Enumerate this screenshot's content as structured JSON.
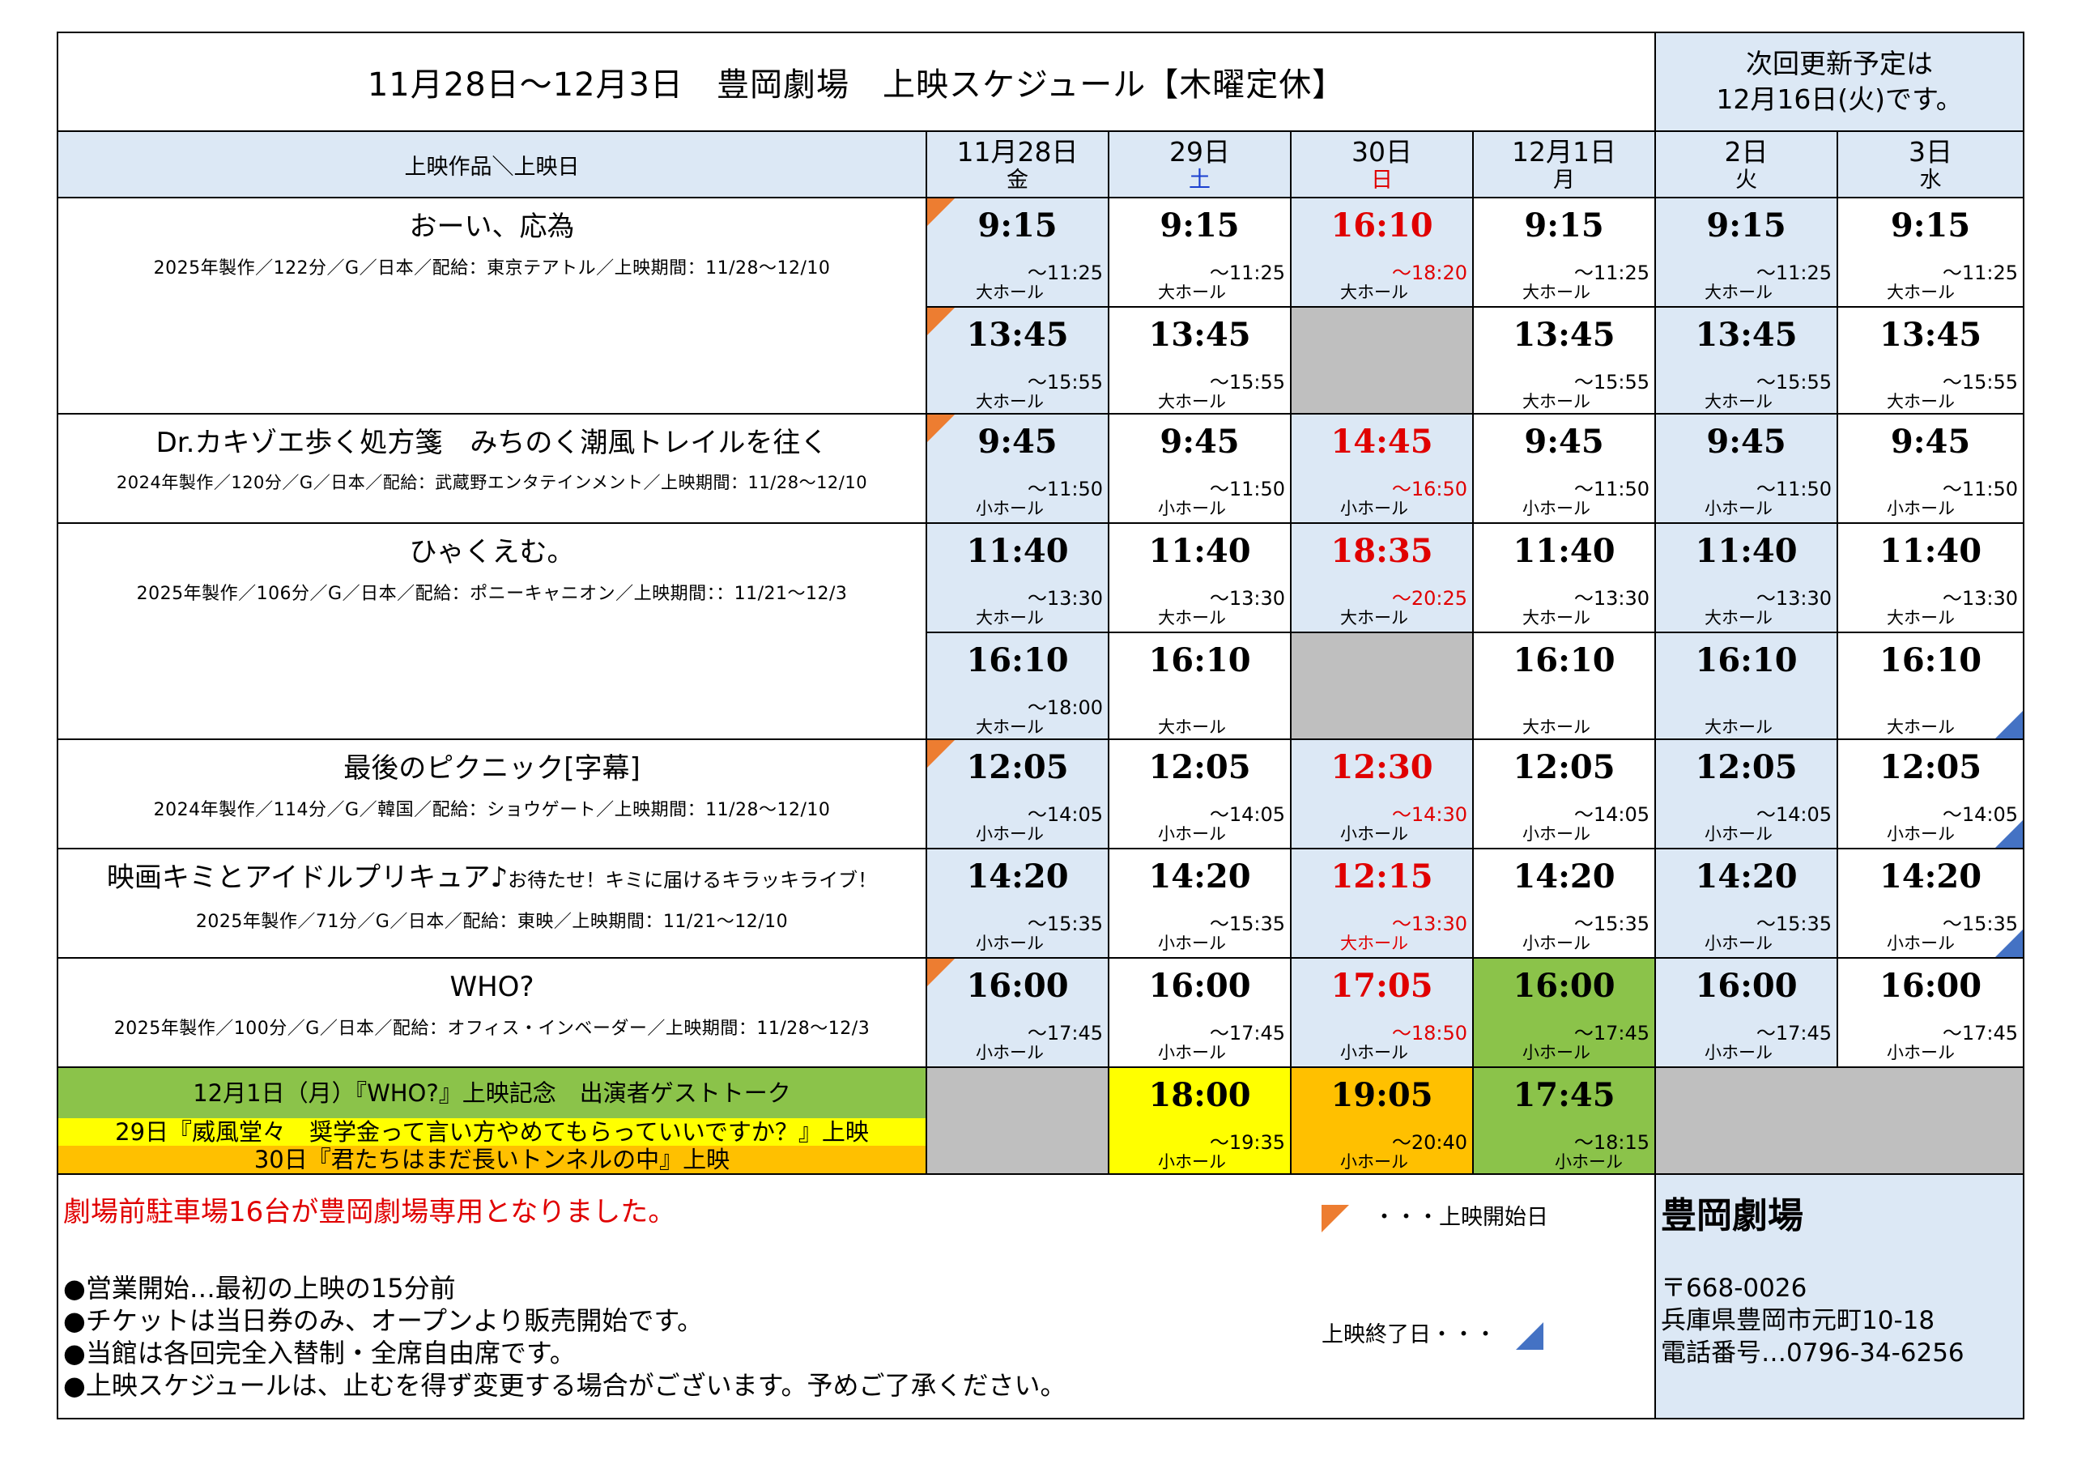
{
  "title": "11月28日～12月3日　豊岡劇場　上映スケジュール【木曜定休】",
  "update_notice": [
    "次回更新予定は",
    "12月16日(火)です。"
  ],
  "header": {
    "label": "上映作品＼上映日",
    "days": [
      {
        "date": "11月28日",
        "weekday": "金"
      },
      {
        "date": "29日",
        "weekday": "土"
      },
      {
        "date": "30日",
        "weekday": "日"
      },
      {
        "date": "12月1日",
        "weekday": "月"
      },
      {
        "date": "2日",
        "weekday": "火"
      },
      {
        "date": "3日",
        "weekday": "水"
      }
    ]
  },
  "movies": [
    {
      "title": "おーい、応為",
      "subtitle": "",
      "info": "2025年製作／122分／G／日本／配給：東京テアトル／上映期間：11/28～12/10",
      "rows": [
        [
          {
            "start": "9:15",
            "end": "～11:25",
            "hall": "大ホール"
          },
          {
            "start": "9:15",
            "end": "～11:25",
            "hall": "大ホール"
          },
          {
            "start": "16:10",
            "end": "～18:20",
            "hall": "大ホール"
          },
          {
            "start": "9:15",
            "end": "～11:25",
            "hall": "大ホール"
          },
          {
            "start": "9:15",
            "end": "～11:25",
            "hall": "大ホール"
          },
          {
            "start": "9:15",
            "end": "～11:25",
            "hall": "大ホール"
          }
        ],
        [
          {
            "start": "13:45",
            "end": "～15:55",
            "hall": "大ホール"
          },
          {
            "start": "13:45",
            "end": "～15:55",
            "hall": "大ホール"
          },
          {
            "start": "",
            "end": "",
            "hall": ""
          },
          {
            "start": "13:45",
            "end": "～15:55",
            "hall": "大ホール"
          },
          {
            "start": "13:45",
            "end": "～15:55",
            "hall": "大ホール"
          },
          {
            "start": "13:45",
            "end": "～15:55",
            "hall": "大ホール"
          }
        ]
      ]
    },
    {
      "title": "Dr.カキゾエ歩く処方箋　みちのく潮風トレイルを往く",
      "subtitle": "",
      "info": "2024年製作／120分／G／日本／配給：武蔵野エンタテインメント／上映期間：11/28～12/10",
      "rows": [
        [
          {
            "start": "9:45",
            "end": "～11:50",
            "hall": "小ホール"
          },
          {
            "start": "9:45",
            "end": "～11:50",
            "hall": "小ホール"
          },
          {
            "start": "14:45",
            "end": "～16:50",
            "hall": "小ホール"
          },
          {
            "start": "9:45",
            "end": "～11:50",
            "hall": "小ホール"
          },
          {
            "start": "9:45",
            "end": "～11:50",
            "hall": "小ホール"
          },
          {
            "start": "9:45",
            "end": "～11:50",
            "hall": "小ホール"
          }
        ]
      ]
    },
    {
      "title": "ひゃくえむ。",
      "subtitle": "",
      "info": "2025年製作／106分／G／日本／配給：ポニーキャニオン／上映期間：：11/21～12/3",
      "rows": [
        [
          {
            "start": "11:40",
            "end": "～13:30",
            "hall": "大ホール"
          },
          {
            "start": "11:40",
            "end": "～13:30",
            "hall": "大ホール"
          },
          {
            "start": "18:35",
            "end": "～20:25",
            "hall": "大ホール"
          },
          {
            "start": "11:40",
            "end": "～13:30",
            "hall": "大ホール"
          },
          {
            "start": "11:40",
            "end": "～13:30",
            "hall": "大ホール"
          },
          {
            "start": "11:40",
            "end": "～13:30",
            "hall": "大ホール"
          }
        ],
        [
          {
            "start": "16:10",
            "end": "～18:00",
            "hall": "大ホール"
          },
          {
            "start": "16:10",
            "end": "",
            "hall": "大ホール"
          },
          {
            "start": "",
            "end": "",
            "hall": ""
          },
          {
            "start": "16:10",
            "end": "",
            "hall": "大ホール"
          },
          {
            "start": "16:10",
            "end": "",
            "hall": "大ホール"
          },
          {
            "start": "16:10",
            "end": "",
            "hall": "大ホール"
          }
        ]
      ]
    },
    {
      "title": "最後のピクニック[字幕]",
      "subtitle": "",
      "info": "2024年製作／114分／G／韓国／配給：ショウゲート／上映期間：11/28～12/10",
      "rows": [
        [
          {
            "start": "12:05",
            "end": "～14:05",
            "hall": "小ホール"
          },
          {
            "start": "12:05",
            "end": "～14:05",
            "hall": "小ホール"
          },
          {
            "start": "12:30",
            "end": "～14:30",
            "hall": "小ホール"
          },
          {
            "start": "12:05",
            "end": "～14:05",
            "hall": "小ホール"
          },
          {
            "start": "12:05",
            "end": "～14:05",
            "hall": "小ホール"
          },
          {
            "start": "12:05",
            "end": "～14:05",
            "hall": "小ホール"
          }
        ]
      ]
    },
    {
      "title": "映画キミとアイドルプリキュア♪",
      "subtitle": "お待たせ！キミに届けるキラッキライブ！",
      "info": "2025年製作／71分／G／日本／配給：東映／上映期間：11/21～12/10",
      "rows": [
        [
          {
            "start": "14:20",
            "end": "～15:35",
            "hall": "小ホール"
          },
          {
            "start": "14:20",
            "end": "～15:35",
            "hall": "小ホール"
          },
          {
            "start": "12:15",
            "end": "～13:30",
            "hall": "大ホール"
          },
          {
            "start": "14:20",
            "end": "～15:35",
            "hall": "小ホール"
          },
          {
            "start": "14:20",
            "end": "～15:35",
            "hall": "小ホール"
          },
          {
            "start": "14:20",
            "end": "～15:35",
            "hall": "小ホール"
          }
        ]
      ]
    },
    {
      "title": "WHO?",
      "subtitle": "",
      "info": "2025年製作／100分／G／日本／配給：オフィス・インベーダー／上映期間：11/28～12/3",
      "rows": [
        [
          {
            "start": "16:00",
            "end": "～17:45",
            "hall": "小ホール"
          },
          {
            "start": "16:00",
            "end": "～17:45",
            "hall": "小ホール"
          },
          {
            "start": "17:05",
            "end": "～18:50",
            "hall": "小ホール"
          },
          {
            "start": "16:00",
            "end": "～17:45",
            "hall": "小ホール"
          },
          {
            "start": "16:00",
            "end": "～17:45",
            "hall": "小ホール"
          },
          {
            "start": "16:00",
            "end": "～17:45",
            "hall": "小ホール"
          }
        ]
      ]
    }
  ],
  "events": {
    "lines": [
      "12月1日（月）『WHO?』上映記念　出演者ゲストトーク",
      "29日『威風堂々　奨学金って言い方やめてもらっていいですか？』上映",
      "30日『君たちはまだ長いトンネルの中』上映"
    ],
    "slots": [
      {
        "start": "",
        "end": "",
        "hall": ""
      },
      {
        "start": "18:00",
        "end": "～19:35",
        "hall": "小ホール"
      },
      {
        "start": "19:05",
        "end": "～20:40",
        "hall": "小ホール"
      },
      {
        "start": "17:45",
        "end": "～18:15",
        "hall": "小ホール"
      }
    ]
  },
  "footer": {
    "notice": "劇場前駐車場16台が豊岡劇場専用となりました。",
    "rules": [
      "●営業開始…最初の上映の15分前",
      "●チケットは当日券のみ、オープンより販売開始です。",
      "●当館は各回完全入替制・全席自由席です。",
      "●上映スケジュールは、止むを得ず変更する場合がございます。予めご了承ください。"
    ],
    "legend_start": "・・・上映開始日",
    "legend_end": "上映終了日・・・"
  },
  "theater": {
    "name": "豊岡劇場",
    "postal": "〒668-0026",
    "address": "兵庫県豊岡市元町10-18",
    "phone": "電話番号…0796-34-6256"
  },
  "colors": {
    "header_bg": "#dce8f5",
    "closed_gray": "#bfbfbf",
    "event_green": "#8bc34a",
    "event_yellow": "#ffff00",
    "event_orange": "#ffc000",
    "start_marker": "#ed7d31",
    "end_marker": "#4472c4",
    "sunday_red": "#e00000",
    "saturday_blue": "#1a3fd0"
  }
}
